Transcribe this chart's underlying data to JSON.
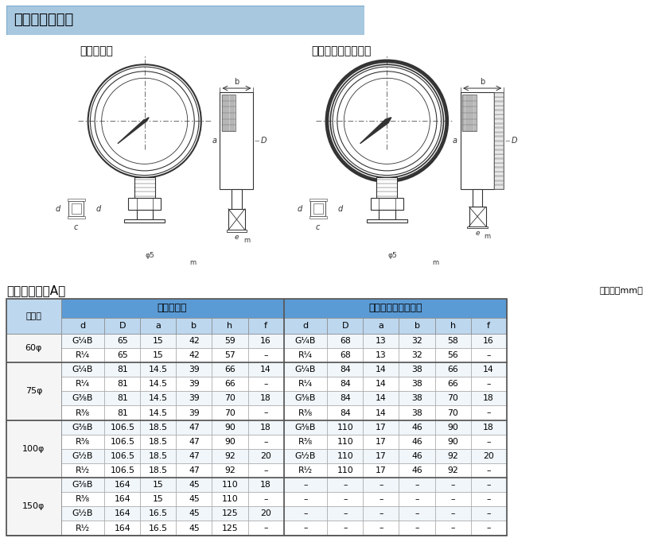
{
  "title_header": "ケース外形寸法",
  "left_diagram_title": "金属ケース",
  "right_diagram_title": "プラスチックケース",
  "table_section_title": "ケース形状／A形",
  "table_unit": "（単位：mm）",
  "header_bg": "#5b9bd5",
  "subheader_bg": "#bdd7ee",
  "size_col_bg": "#deeaf1",
  "title_header_bg": "#a8c8e0",
  "col_groups": [
    "金属ケース",
    "プラスチックケース"
  ],
  "col_labels": [
    "d",
    "D",
    "a",
    "b",
    "h",
    "f"
  ],
  "size_col": "大きさ",
  "sizes": [
    "60φ",
    "75φ",
    "100φ",
    "150φ"
  ],
  "size_rows": [
    2,
    4,
    4,
    4
  ],
  "rows": [
    [
      "60φ",
      "G¹⁄₄B",
      "65",
      "15",
      "42",
      "59",
      "16",
      "G¹⁄₄B",
      "68",
      "13",
      "32",
      "58",
      "16"
    ],
    [
      "60φ",
      "R¹⁄₄",
      "65",
      "15",
      "42",
      "57",
      "–",
      "R¹⁄₄",
      "68",
      "13",
      "32",
      "56",
      "–"
    ],
    [
      "75φ",
      "G¹⁄₄B",
      "81",
      "14.5",
      "39",
      "66",
      "14",
      "G¹⁄₄B",
      "84",
      "14",
      "38",
      "66",
      "14"
    ],
    [
      "75φ",
      "R¹⁄₄",
      "81",
      "14.5",
      "39",
      "66",
      "–",
      "R¹⁄₄",
      "84",
      "14",
      "38",
      "66",
      "–"
    ],
    [
      "75φ",
      "G³⁄₈B",
      "81",
      "14.5",
      "39",
      "70",
      "18",
      "G³⁄₈B",
      "84",
      "14",
      "38",
      "70",
      "18"
    ],
    [
      "75φ",
      "R³⁄₈",
      "81",
      "14.5",
      "39",
      "70",
      "–",
      "R³⁄₈",
      "84",
      "14",
      "38",
      "70",
      "–"
    ],
    [
      "100φ",
      "G³⁄₈B",
      "106.5",
      "18.5",
      "47",
      "90",
      "18",
      "G³⁄₈B",
      "110",
      "17",
      "46",
      "90",
      "18"
    ],
    [
      "100φ",
      "R³⁄₈",
      "106.5",
      "18.5",
      "47",
      "90",
      "–",
      "R³⁄₈",
      "110",
      "17",
      "46",
      "90",
      "–"
    ],
    [
      "100φ",
      "G¹⁄₂B",
      "106.5",
      "18.5",
      "47",
      "92",
      "20",
      "G¹⁄₂B",
      "110",
      "17",
      "46",
      "92",
      "20"
    ],
    [
      "100φ",
      "R¹⁄₂",
      "106.5",
      "18.5",
      "47",
      "92",
      "–",
      "R¹⁄₂",
      "110",
      "17",
      "46",
      "92",
      "–"
    ],
    [
      "150φ",
      "G³⁄₈B",
      "164",
      "15",
      "45",
      "110",
      "18",
      "–",
      "–",
      "–",
      "–",
      "–",
      "–"
    ],
    [
      "150φ",
      "R³⁄₈",
      "164",
      "15",
      "45",
      "110",
      "–",
      "–",
      "–",
      "–",
      "–",
      "–",
      "–"
    ],
    [
      "150φ",
      "G¹⁄₂B",
      "164",
      "16.5",
      "45",
      "125",
      "20",
      "–",
      "–",
      "–",
      "–",
      "–",
      "–"
    ],
    [
      "150φ",
      "R¹⁄₂",
      "164",
      "16.5",
      "45",
      "125",
      "–",
      "–",
      "–",
      "–",
      "–",
      "–",
      "–"
    ]
  ]
}
